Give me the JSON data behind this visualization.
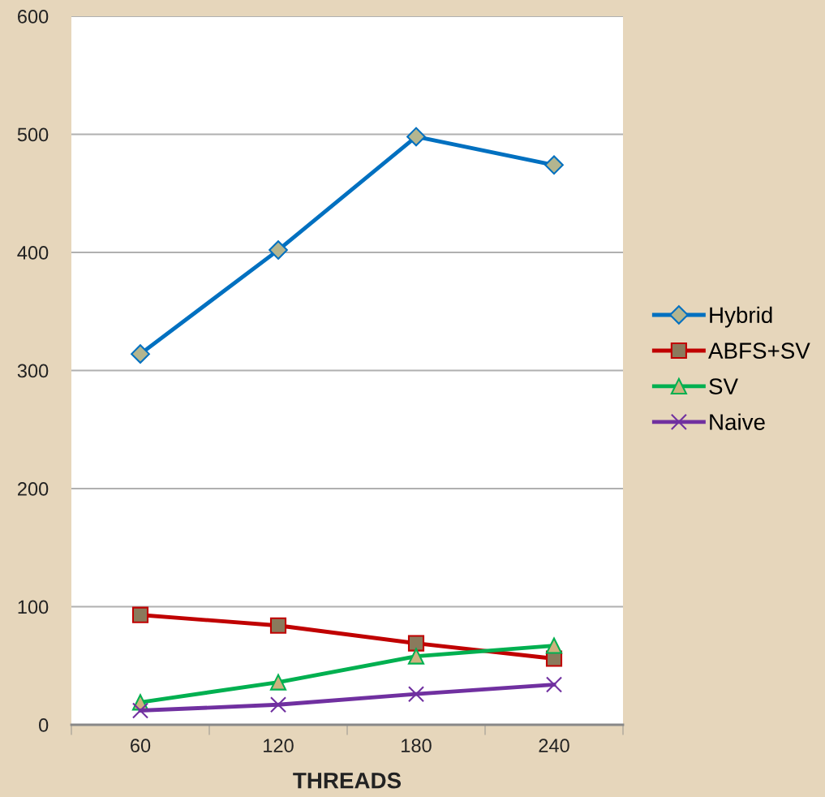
{
  "chart_data": {
    "type": "line",
    "xlabel": "THREADS",
    "categories": [
      "60",
      "120",
      "180",
      "240"
    ],
    "ylim": [
      0,
      600
    ],
    "yticks": [
      0,
      100,
      200,
      300,
      400,
      500,
      600
    ],
    "grid": "y",
    "legend": "right",
    "series": [
      {
        "name": "Hybrid",
        "color": "#0070c0",
        "marker": "diamond",
        "values": [
          314,
          402,
          498,
          474
        ]
      },
      {
        "name": "ABFS+SV",
        "color": "#c00000",
        "marker": "square",
        "values": [
          93,
          84,
          69,
          56
        ]
      },
      {
        "name": "SV",
        "color": "#00b050",
        "marker": "triangle",
        "values": [
          19,
          36,
          58,
          67
        ]
      },
      {
        "name": "Naive",
        "color": "#7030a0",
        "marker": "cross",
        "values": [
          12,
          17,
          26,
          34
        ]
      }
    ]
  }
}
